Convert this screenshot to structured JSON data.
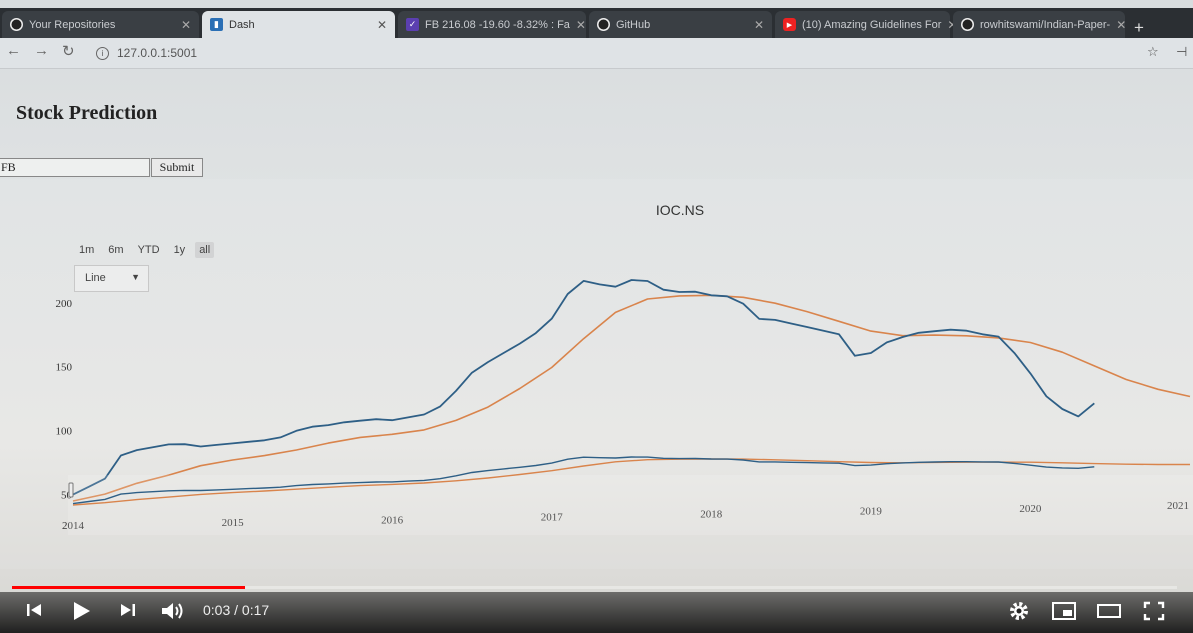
{
  "browser": {
    "tabs": [
      {
        "label": "Your Repositories",
        "icon": "github-icon",
        "active": false
      },
      {
        "label": "Dash",
        "icon": "dash-icon",
        "active": true
      },
      {
        "label": "FB 216.08 -19.60 -8.32% : Fa",
        "icon": "stock-icon",
        "active": false
      },
      {
        "label": "GitHub",
        "icon": "github-icon",
        "active": false
      },
      {
        "label": "(10) Amazing Guidelines For",
        "icon": "youtube-icon",
        "active": false
      },
      {
        "label": "rowhitswami/Indian-Paper-",
        "icon": "github-icon",
        "active": false
      }
    ],
    "url": "127.0.0.1:5001"
  },
  "page": {
    "title": "Stock Prediction",
    "input_value": "FB",
    "submit_label": "Submit"
  },
  "chart_data": {
    "type": "line",
    "title": "IOC.NS",
    "range_buttons": [
      "1m",
      "6m",
      "YTD",
      "1y",
      "all"
    ],
    "active_range": "all",
    "chart_type_select": "Line",
    "x_tick_labels": [
      "2014",
      "2015",
      "2016",
      "2017",
      "2018",
      "2019",
      "2020",
      "2021"
    ],
    "y_tick_labels": [
      "50",
      "100",
      "150",
      "200"
    ],
    "ylim": [
      45,
      210
    ],
    "xlim": [
      2014.0,
      2021.0
    ],
    "series_colors": {
      "price": "#2e5f86",
      "moving_average": "#d9844c"
    },
    "series": [
      {
        "x": [
          2014.0,
          2014.1,
          2014.2,
          2014.3,
          2014.4,
          2014.5,
          2014.6,
          2014.7,
          2014.8,
          2014.9,
          2015.0,
          2015.1,
          2015.2,
          2015.3,
          2015.4,
          2015.5,
          2015.6,
          2015.7,
          2015.8,
          2015.9,
          2016.0,
          2016.1,
          2016.2,
          2016.3,
          2016.4,
          2016.5,
          2016.6,
          2016.7,
          2016.8,
          2016.9,
          2017.0,
          2017.1,
          2017.2,
          2017.3,
          2017.4,
          2017.5,
          2017.6,
          2017.7,
          2017.8,
          2017.9,
          2018.0,
          2018.1,
          2018.2,
          2018.3,
          2018.4,
          2018.5,
          2018.6,
          2018.7,
          2018.8,
          2018.9,
          2019.0,
          2019.1,
          2019.2,
          2019.3,
          2019.4,
          2019.5,
          2019.6,
          2019.7,
          2019.8,
          2019.9,
          2020.0,
          2020.1,
          2020.2,
          2020.3,
          2020.4
        ],
        "values": [
          50,
          56,
          62,
          80,
          84,
          86,
          88,
          88,
          86,
          87,
          88,
          89,
          90,
          92,
          97,
          100,
          101,
          103,
          104,
          105,
          104,
          106,
          108,
          114,
          126,
          140,
          148,
          155,
          162,
          170,
          181,
          200,
          210,
          207,
          205,
          210,
          209,
          202,
          200,
          200,
          197,
          196,
          190,
          178,
          177,
          174,
          171,
          168,
          165,
          148,
          150,
          158,
          162,
          165,
          166,
          167,
          166,
          163,
          161,
          148,
          132,
          114,
          104,
          98,
          108
        ]
      },
      {
        "x": [
          2014.0,
          2014.2,
          2014.4,
          2014.6,
          2014.8,
          2015.0,
          2015.2,
          2015.4,
          2015.6,
          2015.8,
          2016.0,
          2016.2,
          2016.4,
          2016.6,
          2016.8,
          2017.0,
          2017.2,
          2017.4,
          2017.6,
          2017.8,
          2018.0,
          2018.2,
          2018.4,
          2018.6,
          2018.8,
          2019.0,
          2019.2,
          2019.4,
          2019.6,
          2019.8,
          2020.0,
          2020.2,
          2020.4,
          2020.6,
          2020.8,
          2021.0
        ],
        "values": [
          45,
          50,
          58,
          64,
          71,
          75,
          78,
          82,
          87,
          91,
          93,
          96,
          103,
          113,
          127,
          143,
          165,
          185,
          195,
          197,
          197,
          195,
          190,
          183,
          175,
          167,
          163,
          163,
          162,
          160,
          156,
          148,
          137,
          126,
          118,
          112
        ]
      }
    ]
  },
  "player": {
    "time_label": "0:03 / 0:17",
    "progress": 0.2,
    "accent": "#ff0000"
  }
}
